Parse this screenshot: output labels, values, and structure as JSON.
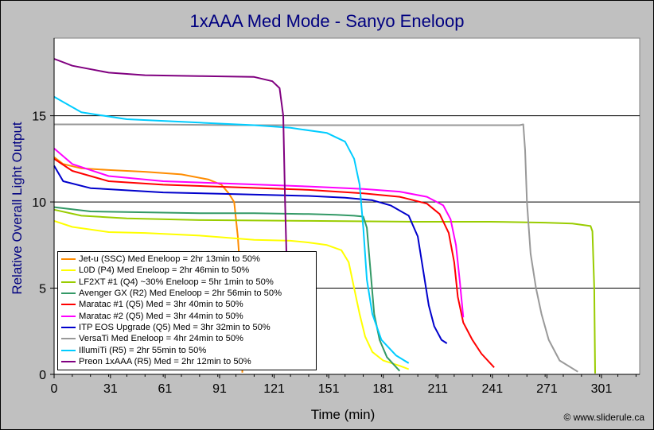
{
  "chart_data": {
    "type": "line",
    "title": "1xAAA Med Mode - Sanyo Eneloop",
    "xlabel": "Time (min)",
    "ylabel": "Relative Overall Light Output",
    "xlim": [
      0,
      322
    ],
    "ylim": [
      0,
      19.5
    ],
    "x_ticks": [
      "0",
      "31",
      "61",
      "91",
      "121",
      "151",
      "181",
      "211",
      "241",
      "271",
      "301"
    ],
    "y_ticks": [
      "0",
      "5",
      "10",
      "15"
    ],
    "grid": "horizontal",
    "legend": "bottom-left",
    "series": [
      {
        "name": "Jet-u (SSC) Med Eneloop = 2hr 13min to 50%",
        "color": "#ff8c00",
        "points": [
          [
            0,
            12.6
          ],
          [
            5,
            12.2
          ],
          [
            15,
            11.95
          ],
          [
            30,
            11.85
          ],
          [
            50,
            11.75
          ],
          [
            70,
            11.6
          ],
          [
            85,
            11.3
          ],
          [
            92,
            11.0
          ],
          [
            96,
            10.5
          ],
          [
            99,
            10.0
          ],
          [
            101,
            8.0
          ],
          [
            102,
            6.5
          ],
          [
            103,
            3.0
          ],
          [
            103.5,
            0.1
          ]
        ]
      },
      {
        "name": "L0D (P4) Med Eneloop = 2hr 46min to 50%",
        "color": "#ffff00",
        "points": [
          [
            0,
            8.9
          ],
          [
            10,
            8.55
          ],
          [
            30,
            8.25
          ],
          [
            50,
            8.2
          ],
          [
            80,
            8.05
          ],
          [
            110,
            7.8
          ],
          [
            130,
            7.75
          ],
          [
            140,
            7.65
          ],
          [
            150,
            7.5
          ],
          [
            158,
            7.2
          ],
          [
            162,
            6.5
          ],
          [
            165,
            5.0
          ],
          [
            168,
            3.5
          ],
          [
            171,
            2.2
          ],
          [
            175,
            1.3
          ],
          [
            181,
            0.8
          ],
          [
            190,
            0.5
          ],
          [
            195,
            0.3
          ]
        ]
      },
      {
        "name": "LF2XT #1 (Q4) ~30% Eneloop = 5hr 1min to 50%",
        "color": "#99cc00",
        "points": [
          [
            0,
            9.55
          ],
          [
            15,
            9.2
          ],
          [
            40,
            9.05
          ],
          [
            80,
            8.95
          ],
          [
            140,
            8.9
          ],
          [
            200,
            8.85
          ],
          [
            240,
            8.85
          ],
          [
            270,
            8.8
          ],
          [
            285,
            8.75
          ],
          [
            295,
            8.6
          ],
          [
            296,
            8.3
          ],
          [
            297,
            5.0
          ],
          [
            297.5,
            0.05
          ]
        ]
      },
      {
        "name": "Avenger GX (R2) Med Eneloop = 2hr 56min to 50%",
        "color": "#339966",
        "points": [
          [
            0,
            9.7
          ],
          [
            20,
            9.45
          ],
          [
            50,
            9.4
          ],
          [
            80,
            9.35
          ],
          [
            110,
            9.35
          ],
          [
            140,
            9.3
          ],
          [
            155,
            9.25
          ],
          [
            165,
            9.2
          ],
          [
            170,
            9.15
          ],
          [
            172,
            8.5
          ],
          [
            174,
            6.0
          ],
          [
            176,
            3.5
          ],
          [
            179,
            2.0
          ],
          [
            183,
            1.0
          ],
          [
            190,
            0.2
          ]
        ]
      },
      {
        "name": "Maratac #1 (Q5) Med = 3hr 40min to 50%",
        "color": "#ff0000",
        "points": [
          [
            0,
            12.5
          ],
          [
            10,
            11.8
          ],
          [
            30,
            11.2
          ],
          [
            60,
            11.0
          ],
          [
            100,
            10.85
          ],
          [
            140,
            10.7
          ],
          [
            170,
            10.5
          ],
          [
            190,
            10.3
          ],
          [
            205,
            9.9
          ],
          [
            212,
            9.3
          ],
          [
            217,
            8.2
          ],
          [
            220,
            6.5
          ],
          [
            222,
            4.5
          ],
          [
            225,
            3.0
          ],
          [
            230,
            2.0
          ],
          [
            235,
            1.2
          ],
          [
            242,
            0.4
          ]
        ]
      },
      {
        "name": "Maratac #2 (Q5) Med = 3hr 44min to 50%",
        "color": "#ff00ff",
        "points": [
          [
            0,
            13.1
          ],
          [
            10,
            12.2
          ],
          [
            30,
            11.5
          ],
          [
            60,
            11.2
          ],
          [
            100,
            11.05
          ],
          [
            140,
            10.9
          ],
          [
            170,
            10.75
          ],
          [
            190,
            10.6
          ],
          [
            205,
            10.3
          ],
          [
            214,
            9.8
          ],
          [
            218,
            9.0
          ],
          [
            221,
            7.5
          ],
          [
            223,
            5.5
          ],
          [
            225,
            3.3
          ]
        ]
      },
      {
        "name": "ITP EOS Upgrade (Q5) Med = 3hr 32min to 50%",
        "color": "#0000cc",
        "points": [
          [
            0,
            12.1
          ],
          [
            5,
            11.2
          ],
          [
            20,
            10.8
          ],
          [
            60,
            10.55
          ],
          [
            100,
            10.45
          ],
          [
            140,
            10.35
          ],
          [
            160,
            10.25
          ],
          [
            175,
            10.1
          ],
          [
            185,
            9.8
          ],
          [
            195,
            9.2
          ],
          [
            200,
            8.0
          ],
          [
            203,
            6.0
          ],
          [
            206,
            4.0
          ],
          [
            209,
            2.8
          ],
          [
            213,
            2.0
          ],
          [
            216,
            1.8
          ]
        ]
      },
      {
        "name": "VersaTi Med Eneloop = 4hr 24min to 50%",
        "color": "#999999",
        "points": [
          [
            0,
            14.5
          ],
          [
            50,
            14.5
          ],
          [
            100,
            14.45
          ],
          [
            150,
            14.45
          ],
          [
            200,
            14.45
          ],
          [
            240,
            14.45
          ],
          [
            256,
            14.45
          ],
          [
            258,
            14.5
          ],
          [
            259,
            13.0
          ],
          [
            260,
            10.0
          ],
          [
            262,
            7.0
          ],
          [
            265,
            5.0
          ],
          [
            268,
            3.5
          ],
          [
            272,
            2.0
          ],
          [
            278,
            0.8
          ],
          [
            288,
            0.15
          ]
        ]
      },
      {
        "name": "IllumiTi (R5) = 2hr 55min to 50%",
        "color": "#00ccff",
        "points": [
          [
            0,
            16.1
          ],
          [
            15,
            15.2
          ],
          [
            40,
            14.8
          ],
          [
            80,
            14.6
          ],
          [
            110,
            14.45
          ],
          [
            130,
            14.3
          ],
          [
            150,
            14.0
          ],
          [
            160,
            13.5
          ],
          [
            165,
            12.5
          ],
          [
            168,
            11.0
          ],
          [
            170,
            8.5
          ],
          [
            172,
            5.5
          ],
          [
            175,
            3.5
          ],
          [
            180,
            2.0
          ],
          [
            188,
            1.1
          ],
          [
            195,
            0.65
          ]
        ]
      },
      {
        "name": "Preon 1xAAA (R5) Med = 2hr 12min to 50%",
        "color": "#800080",
        "points": [
          [
            0,
            18.3
          ],
          [
            10,
            17.9
          ],
          [
            30,
            17.5
          ],
          [
            50,
            17.35
          ],
          [
            80,
            17.3
          ],
          [
            110,
            17.25
          ],
          [
            120,
            17.0
          ],
          [
            124,
            16.6
          ],
          [
            126,
            15.0
          ],
          [
            127,
            10.0
          ],
          [
            128,
            6.0
          ],
          [
            129,
            3.0
          ],
          [
            129.5,
            0.8
          ]
        ]
      }
    ]
  },
  "credit": "© www.sliderule.ca"
}
